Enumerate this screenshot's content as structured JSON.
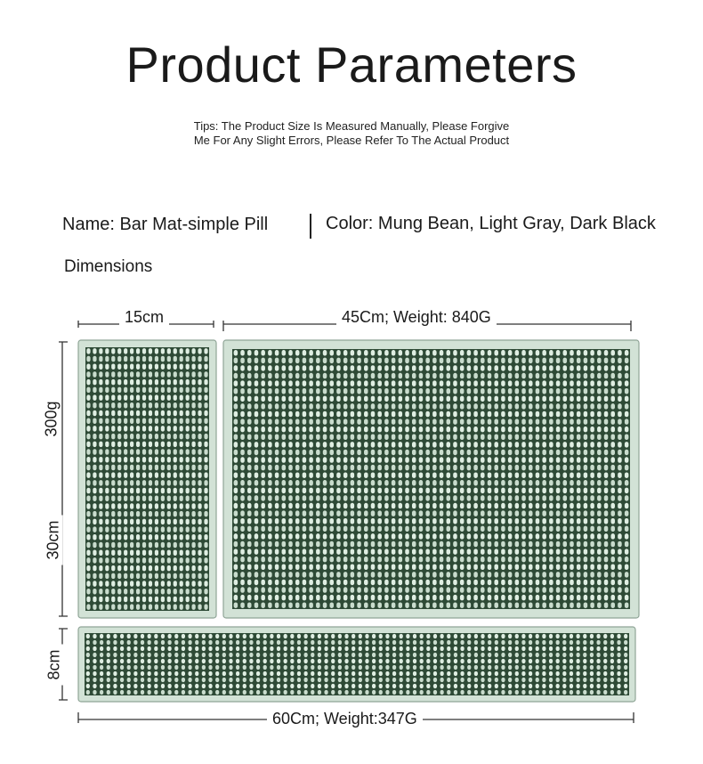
{
  "title": "Product Parameters",
  "tips": {
    "line1": "Tips: The Product Size Is Measured Manually, Please Forgive",
    "line2": "Me For Any Slight Errors, Please Refer To The Actual Product"
  },
  "specs": {
    "name": "Name: Bar Mat-simple Pill",
    "color": "Color: Mung Bean, Light Gray, Dark Black"
  },
  "dimensions_heading": "Dimensions",
  "mats": {
    "small": {
      "width_label": "15cm",
      "height_label": "30cm",
      "weight_label": "300g"
    },
    "large": {
      "width_label": "45Cm; Weight: 840G"
    },
    "long": {
      "width_label": "60Cm; Weight:347G",
      "height_label": "8cm"
    }
  },
  "colors": {
    "mat_border": "#d2e2d6",
    "mat_outline": "#8fa597",
    "mat_base": "#2e4a36",
    "pill": "#c9dccd",
    "pill_light": "#dfeee2"
  }
}
